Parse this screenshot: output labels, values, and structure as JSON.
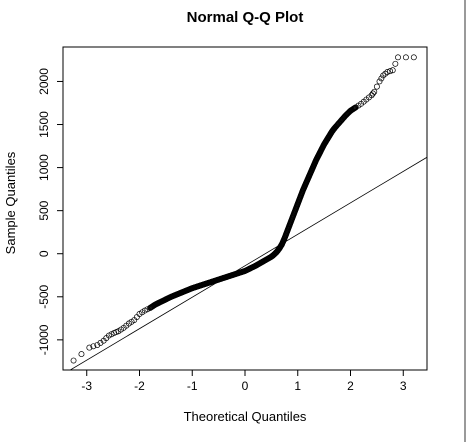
{
  "chart_data": {
    "type": "scatter",
    "title": "Normal Q-Q Plot",
    "xlabel": "Theoretical Quantiles",
    "ylabel": "Sample Quantiles",
    "xlim": [
      -3.45,
      3.45
    ],
    "ylim": [
      -1350,
      2400
    ],
    "x_ticks": [
      -3,
      -2,
      -1,
      0,
      1,
      2,
      3
    ],
    "y_ticks": [
      -1000,
      -500,
      0,
      500,
      1000,
      1500,
      2000
    ],
    "x_tick_labels": [
      "-3",
      "-2",
      "-1",
      "0",
      "1",
      "2",
      "3"
    ],
    "y_tick_labels": [
      "-1000",
      "-500",
      "0",
      "500",
      "1000",
      "1500",
      "2000"
    ],
    "reference_line": {
      "x": [
        -3.45,
        3.45
      ],
      "y": [
        -1400,
        1120
      ]
    },
    "grid": false,
    "legend": "none",
    "points": [
      [
        -3.25,
        -1240
      ],
      [
        -2.95,
        -1090
      ],
      [
        -2.8,
        -1060
      ],
      [
        -2.68,
        -1010
      ],
      [
        -2.58,
        -950
      ],
      [
        -2.48,
        -920
      ],
      [
        -2.4,
        -900
      ],
      [
        -2.3,
        -860
      ],
      [
        -2.2,
        -810
      ],
      [
        -2.1,
        -770
      ],
      [
        -2.0,
        -700
      ],
      [
        -1.9,
        -660
      ],
      [
        -1.8,
        -630
      ],
      [
        -1.7,
        -590
      ],
      [
        -1.6,
        -560
      ],
      [
        -1.5,
        -530
      ],
      [
        -1.4,
        -500
      ],
      [
        -1.3,
        -475
      ],
      [
        -1.2,
        -450
      ],
      [
        -1.1,
        -425
      ],
      [
        -1.0,
        -400
      ],
      [
        -0.9,
        -380
      ],
      [
        -0.8,
        -360
      ],
      [
        -0.7,
        -340
      ],
      [
        -0.6,
        -320
      ],
      [
        -0.5,
        -300
      ],
      [
        -0.4,
        -280
      ],
      [
        -0.3,
        -260
      ],
      [
        -0.2,
        -240
      ],
      [
        -0.1,
        -220
      ],
      [
        0.0,
        -200
      ],
      [
        0.1,
        -170
      ],
      [
        0.2,
        -140
      ],
      [
        0.3,
        -105
      ],
      [
        0.4,
        -70
      ],
      [
        0.5,
        -35
      ],
      [
        0.55,
        -10
      ],
      [
        0.6,
        20
      ],
      [
        0.65,
        60
      ],
      [
        0.7,
        110
      ],
      [
        0.75,
        180
      ],
      [
        0.8,
        260
      ],
      [
        0.85,
        340
      ],
      [
        0.9,
        420
      ],
      [
        0.95,
        500
      ],
      [
        1.0,
        580
      ],
      [
        1.05,
        660
      ],
      [
        1.1,
        740
      ],
      [
        1.15,
        810
      ],
      [
        1.2,
        880
      ],
      [
        1.25,
        950
      ],
      [
        1.3,
        1020
      ],
      [
        1.35,
        1090
      ],
      [
        1.4,
        1150
      ],
      [
        1.45,
        1210
      ],
      [
        1.5,
        1270
      ],
      [
        1.55,
        1320
      ],
      [
        1.6,
        1370
      ],
      [
        1.65,
        1420
      ],
      [
        1.7,
        1460
      ],
      [
        1.8,
        1530
      ],
      [
        1.9,
        1600
      ],
      [
        2.0,
        1660
      ],
      [
        2.1,
        1700
      ],
      [
        2.2,
        1740
      ],
      [
        2.3,
        1790
      ],
      [
        2.4,
        1840
      ],
      [
        2.45,
        1880
      ],
      [
        2.55,
        2000
      ],
      [
        2.62,
        2070
      ],
      [
        2.7,
        2110
      ],
      [
        2.8,
        2130
      ],
      [
        2.9,
        2280
      ],
      [
        3.2,
        2280
      ]
    ]
  }
}
